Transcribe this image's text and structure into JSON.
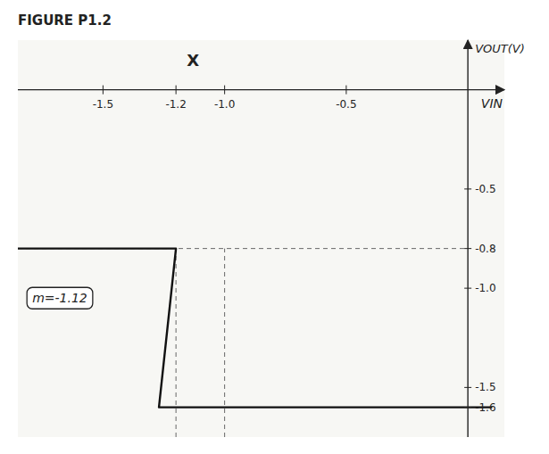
{
  "chart_data": {
    "type": "line",
    "title": "FIGURE P1.2",
    "x_label": "VIN",
    "y_label": "VOUT(V)",
    "x": [
      -1.85,
      -1.2,
      -1.27,
      0.1
    ],
    "values": [
      -0.8,
      -0.8,
      -1.6,
      -1.6
    ],
    "color": "#111111",
    "xlim": [
      -1.85,
      0.15
    ],
    "ylim": [
      -1.75,
      0.25
    ],
    "xticks": [
      -1.5,
      -1.2,
      {
        "value": -1.0,
        "label": "-1.0"
      },
      -0.5
    ],
    "yticks": [
      -0.5,
      -0.8,
      {
        "value": -1.0,
        "label": "-1.0"
      },
      -1.5,
      -1.6
    ],
    "vlines": [
      -1.2,
      -1.0
    ],
    "hlines": [
      -0.8
    ],
    "marker_label": {
      "text": "X",
      "x": -1.13,
      "y": 0.15
    },
    "slope_label": {
      "text": "m=-1.12",
      "x": -1.82,
      "y": -1.05
    },
    "grid": false
  }
}
